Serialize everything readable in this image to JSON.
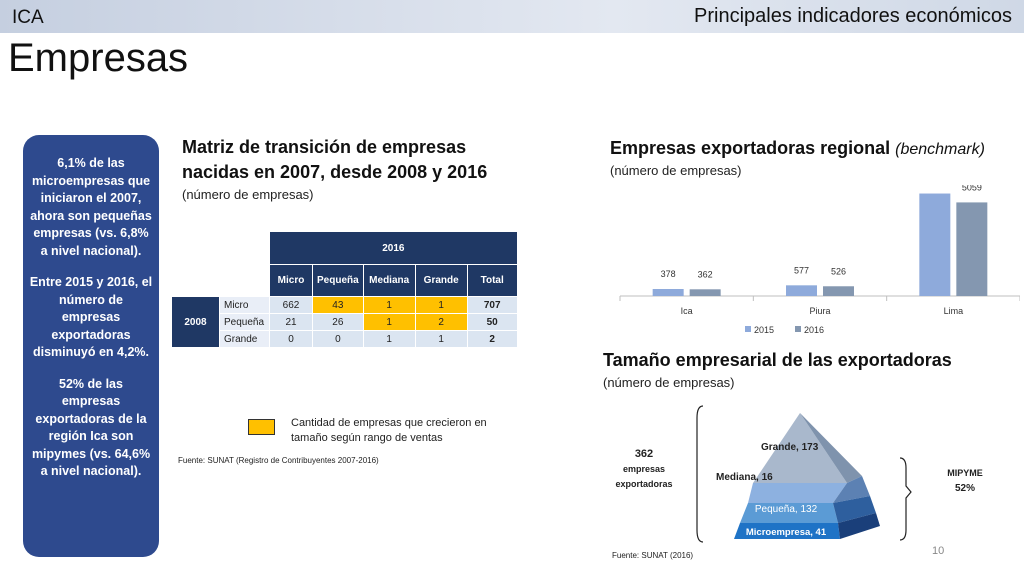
{
  "header": {
    "region": "ICA",
    "title": "Principales indicadores económicos"
  },
  "page_title": "Empresas",
  "sidebar": {
    "p1": "6,1% de las microempresas  que iniciaron el 2007, ahora son pequeñas empresas (vs. 6,8% a nivel nacional).",
    "p2": "Entre 2015 y 2016, el número de empresas exportadoras disminuyó en 4,2%.",
    "p3": "52% de las empresas exportadoras de la región Ica son mipymes (vs. 64,6% a nivel nacional)."
  },
  "matrix": {
    "title": "Matriz de transición de empresas nacidas en 2007, desde 2008 y 2016",
    "subtitle": "(número de empresas)",
    "col_group": "2016",
    "row_group": "2008",
    "columns": [
      "Micro",
      "Pequeña",
      "Mediana",
      "Grande",
      "Total"
    ],
    "rows": [
      {
        "label": "Micro",
        "values": [
          "662",
          "43",
          "1",
          "1",
          "707"
        ]
      },
      {
        "label": "Pequeña",
        "values": [
          "21",
          "26",
          "1",
          "2",
          "50"
        ]
      },
      {
        "label": "Grande",
        "values": [
          "0",
          "0",
          "1",
          "1",
          "2"
        ]
      }
    ],
    "highlight_color": "#ffc000",
    "legend_text": "Cantidad de empresas que crecieron en tamaño según rango de ventas",
    "source": "Fuente: SUNAT (Registro de Contribuyentes 2007-2016)"
  },
  "exporters": {
    "title": "Empresas exportadoras regional",
    "title_italic": "(benchmark)",
    "subtitle": "(número de empresas)"
  },
  "pyramid": {
    "title": "Tamaño empresarial de las exportadoras",
    "subtitle": "(número de empresas)",
    "total_value": "362",
    "total_label_1": "empresas",
    "total_label_2": "exportadoras",
    "mipyme_label": "MIPYME",
    "mipyme_pct": "52%",
    "source": "Fuente: SUNAT (2016)",
    "levels": [
      {
        "label": "Grande, 173",
        "value": 173
      },
      {
        "label": "Mediana, 16",
        "value": 16
      },
      {
        "label": "Pequeña, 132",
        "value": 132
      },
      {
        "label": "Microempresa, 41",
        "value": 41
      }
    ]
  },
  "page_number": "10",
  "chart_data": {
    "type": "bar",
    "categories": [
      "Ica",
      "Piura",
      "Lima"
    ],
    "series": [
      {
        "name": "2015",
        "values": [
          378,
          577,
          5539
        ],
        "color": "#8eaadb"
      },
      {
        "name": "2016",
        "values": [
          362,
          526,
          5059
        ],
        "color": "#8497b0"
      }
    ],
    "ylim": [
      0,
      6000
    ],
    "grid": false,
    "legend_position": "bottom"
  }
}
